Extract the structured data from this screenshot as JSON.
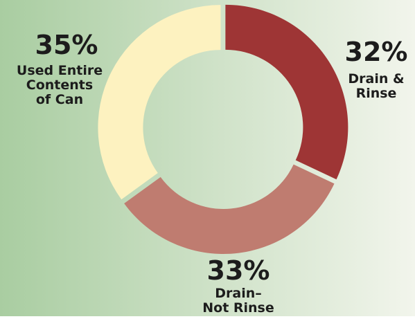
{
  "chart_data": {
    "type": "pie",
    "donut": true,
    "slices": [
      {
        "value": 32,
        "pct_label": "32%",
        "label_lines": [
          "Drain &",
          "Rinse"
        ],
        "color": "#9e3535"
      },
      {
        "value": 33,
        "pct_label": "33%",
        "label_lines": [
          "Drain–",
          "Not Rinse"
        ],
        "color": "#bf7c70"
      },
      {
        "value": 35,
        "pct_label": "35%",
        "label_lines": [
          "Used Entire",
          "Contents",
          "of Can"
        ],
        "color": "#fdf2c0"
      }
    ],
    "background_colors": [
      "#a9cda1",
      "#f2f5ec"
    ]
  }
}
